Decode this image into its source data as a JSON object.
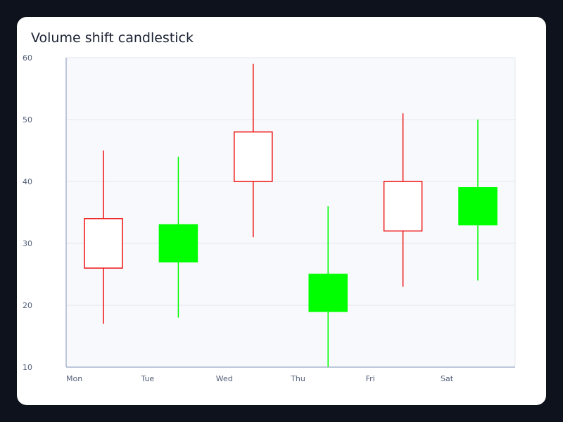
{
  "chart_data": {
    "type": "candlestick",
    "title": "Volume shift candlestick",
    "xlabel": "",
    "ylabel": "",
    "categories": [
      "Mon",
      "Tue",
      "Wed",
      "Thu",
      "Fri",
      "Sat"
    ],
    "ylim": [
      10,
      60
    ],
    "yticks": [
      10,
      20,
      30,
      40,
      50,
      60
    ],
    "grid": true,
    "legend": "none",
    "candles": [
      {
        "x": "Mon",
        "open": 26,
        "high": 45,
        "low": 17,
        "close": 34
      },
      {
        "x": "Tue",
        "open": 33,
        "high": 44,
        "low": 18,
        "close": 27
      },
      {
        "x": "Wed",
        "open": 40,
        "high": 59,
        "low": 31,
        "close": 48
      },
      {
        "x": "Thu",
        "open": 25,
        "high": 36,
        "low": 10,
        "close": 19
      },
      {
        "x": "Fri",
        "open": 32,
        "high": 51,
        "low": 23,
        "close": 40
      },
      {
        "x": "Sat",
        "open": 39,
        "high": 50,
        "low": 24,
        "close": 33
      }
    ],
    "colors": {
      "increasing": "#ee1111",
      "increasing_fill": "#ffffff",
      "decreasing": "#00ff00",
      "decreasing_fill": "#00ff00",
      "plot_background": "#f8f9fc",
      "grid": "#e3e7ef",
      "axis": "#a9b6cf"
    }
  }
}
